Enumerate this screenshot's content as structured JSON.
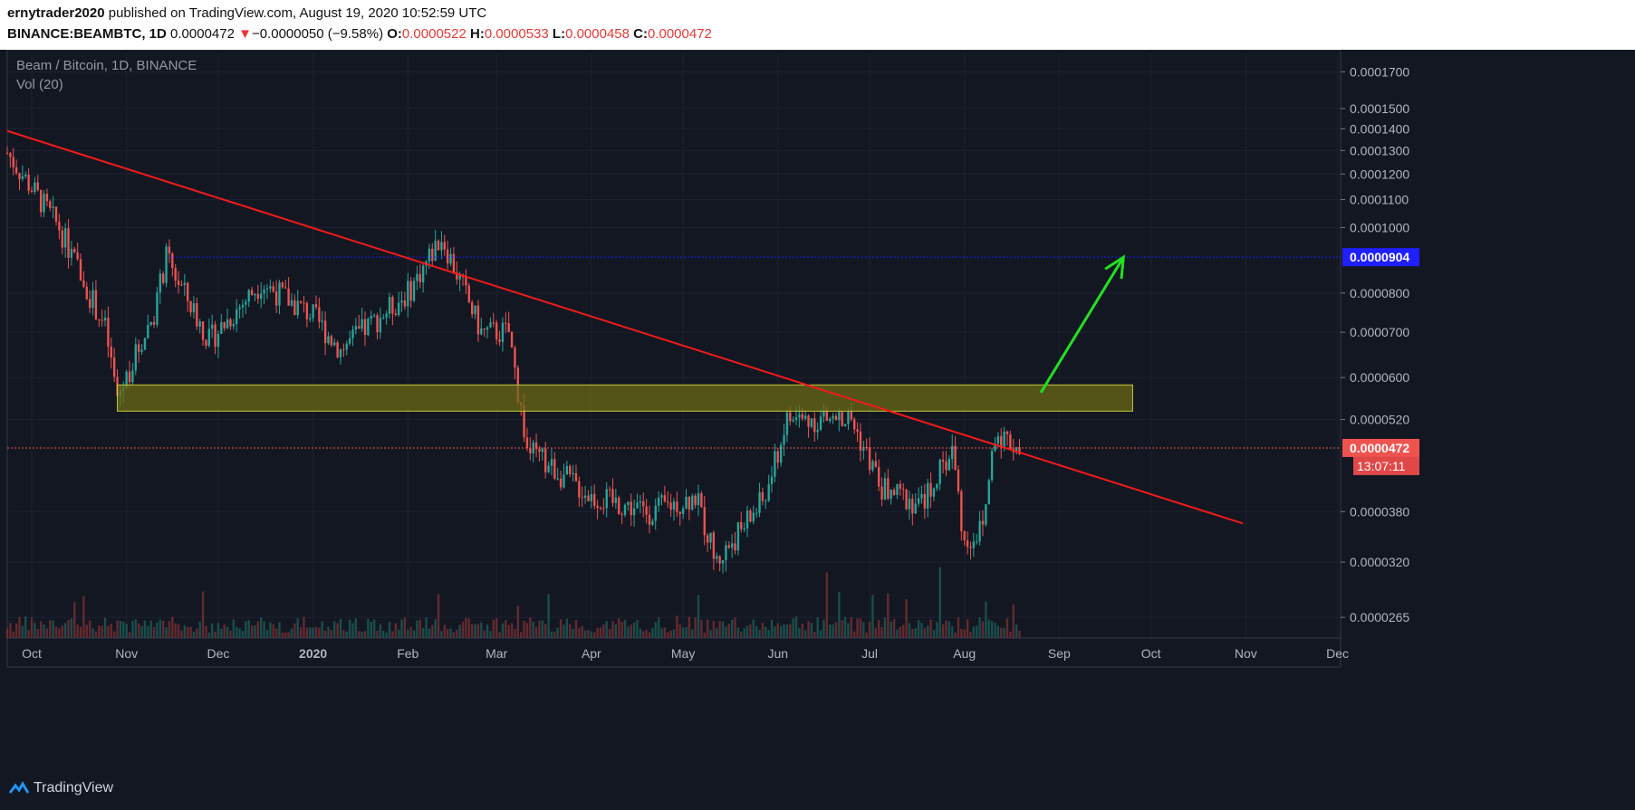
{
  "header": {
    "publisher": "ernytrader2020",
    "published_text": "published on TradingView.com, August 19, 2020 10:52:59 UTC",
    "symbol": "BINANCE:BEAMBTC, 1D",
    "last": "0.0000472",
    "change_arrow": "▼",
    "change": "−0.0000050 (−9.58%)",
    "o_label": "O:",
    "o_value": "0.0000522",
    "h_label": "H:",
    "h_value": "0.0000533",
    "l_label": "L:",
    "l_value": "0.0000458",
    "c_label": "C:",
    "c_value": "0.0000472"
  },
  "legend": {
    "title": "Beam / Bitcoin, 1D, BINANCE",
    "indicator": "Vol (20)"
  },
  "footer": {
    "brand": "TradingView"
  },
  "colors": {
    "background": "#131722",
    "up": "#26a69a",
    "down": "#ef5350",
    "trendline": "#f21b1b",
    "zone_fill": "#6b6a16",
    "zone_stroke": "#c8c83a",
    "resistance_line": "#1f1fff",
    "arrow": "#22e022",
    "price_label": "#ef5350",
    "resistance_label": "#1f1fff"
  },
  "chart_data": {
    "type": "candlestick",
    "x_axis": {
      "ticks": [
        "Oct",
        "Nov",
        "Dec",
        "2020",
        "Feb",
        "Mar",
        "Apr",
        "May",
        "Jun",
        "Jul",
        "Aug",
        "Sep",
        "Oct",
        "Nov",
        "Dec"
      ],
      "tick_dates": [
        "2019-10-01",
        "2019-11-01",
        "2019-12-01",
        "2020-01-01",
        "2020-02-01",
        "2020-03-01",
        "2020-04-01",
        "2020-05-01",
        "2020-06-01",
        "2020-07-01",
        "2020-08-01",
        "2020-09-01",
        "2020-10-01",
        "2020-11-01",
        "2020-12-01"
      ],
      "range": [
        "2019-09-23",
        "2020-12-02"
      ]
    },
    "y_axis": {
      "scale": "log",
      "ticks": [
        "0.0001700",
        "0.0001500",
        "0.0001400",
        "0.0001300",
        "0.0001200",
        "0.0001100",
        "0.0001000",
        "0.0000904",
        "0.0000800",
        "0.0000700",
        "0.0000600",
        "0.0000520",
        "0.0000472",
        "0.0000380",
        "0.0000320",
        "0.0000265"
      ],
      "tick_values": [
        0.00017,
        0.00015,
        0.00014,
        0.00013,
        0.00012,
        0.00011,
        0.0001,
        9.04e-05,
        8e-05,
        7e-05,
        6e-05,
        5.2e-05,
        4.72e-05,
        3.8e-05,
        3.2e-05,
        2.65e-05
      ],
      "range": [
        2.47e-05,
        0.000181
      ]
    },
    "ohlc_monthly_path": [
      {
        "date": "2019-09-23",
        "close": 0.000129
      },
      {
        "date": "2019-10-10",
        "close": 0.0001
      },
      {
        "date": "2019-10-25",
        "close": 7.1e-05
      },
      {
        "date": "2019-10-29",
        "close": 5.6e-05
      },
      {
        "date": "2019-11-10",
        "close": 7.5e-05
      },
      {
        "date": "2019-11-14",
        "close": 9e-05
      },
      {
        "date": "2019-11-28",
        "close": 6.8e-05
      },
      {
        "date": "2019-12-15",
        "close": 8.3e-05
      },
      {
        "date": "2020-01-01",
        "close": 7.4e-05
      },
      {
        "date": "2020-01-10",
        "close": 6.6e-05
      },
      {
        "date": "2020-02-01",
        "close": 8e-05
      },
      {
        "date": "2020-02-12",
        "close": 9.7e-05
      },
      {
        "date": "2020-02-25",
        "close": 7e-05
      },
      {
        "date": "2020-03-05",
        "close": 7e-05
      },
      {
        "date": "2020-03-11",
        "close": 4.7e-05
      },
      {
        "date": "2020-04-01",
        "close": 4e-05
      },
      {
        "date": "2020-04-20",
        "close": 3.8e-05
      },
      {
        "date": "2020-05-05",
        "close": 4e-05
      },
      {
        "date": "2020-05-12",
        "close": 3.2e-05
      },
      {
        "date": "2020-05-28",
        "close": 4e-05
      },
      {
        "date": "2020-06-04",
        "close": 5.2e-05
      },
      {
        "date": "2020-06-25",
        "close": 5.2e-05
      },
      {
        "date": "2020-07-05",
        "close": 4.1e-05
      },
      {
        "date": "2020-07-18",
        "close": 3.9e-05
      },
      {
        "date": "2020-07-28",
        "close": 4.7e-05
      },
      {
        "date": "2020-08-01",
        "close": 3.4e-05
      },
      {
        "date": "2020-08-07",
        "close": 3.6e-05
      },
      {
        "date": "2020-08-11",
        "close": 5e-05
      },
      {
        "date": "2020-08-19",
        "close": 4.72e-05
      }
    ],
    "annotations": {
      "trendline": {
        "from": {
          "date": "2019-09-23",
          "price": 0.000139
        },
        "to": {
          "date": "2020-10-31",
          "price": 3.65e-05
        }
      },
      "support_zone": {
        "from_date": "2019-10-29",
        "to_date": "2020-09-25",
        "low": 5.35e-05,
        "high": 5.85e-05
      },
      "resistance_line": {
        "from_date": "2019-11-15",
        "price": 9.04e-05,
        "label": "0.0000904"
      },
      "arrow": {
        "from": {
          "date": "2020-08-26",
          "price": 5.7e-05
        },
        "to": {
          "date": "2020-09-22",
          "price": 9.04e-05
        }
      },
      "last_price_label": "0.0000472",
      "countdown_label": "13:07:11"
    },
    "grid": true
  }
}
